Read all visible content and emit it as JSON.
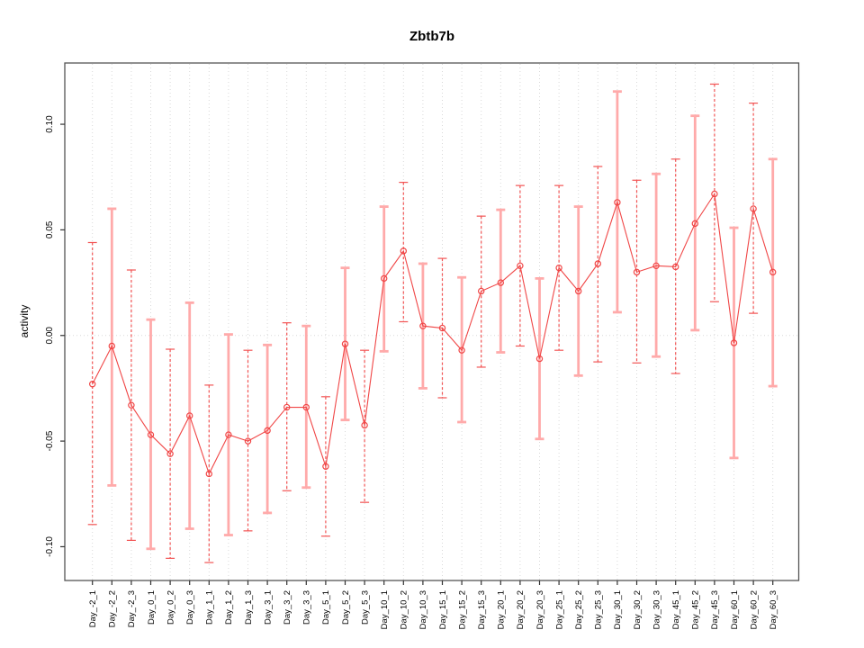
{
  "chart_data": {
    "type": "line",
    "title": "Zbtb7b",
    "xlabel": "",
    "ylabel": "activity",
    "categories": [
      "Day_-2_1",
      "Day_-2_2",
      "Day_-2_3",
      "Day_0_1",
      "Day_0_2",
      "Day_0_3",
      "Day_1_1",
      "Day_1_2",
      "Day_1_3",
      "Day_3_1",
      "Day_3_2",
      "Day_3_3",
      "Day_5_1",
      "Day_5_2",
      "Day_5_3",
      "Day_10_1",
      "Day_10_2",
      "Day_10_3",
      "Day_15_1",
      "Day_15_2",
      "Day_15_3",
      "Day_20_1",
      "Day_20_2",
      "Day_20_3",
      "Day_25_1",
      "Day_25_2",
      "Day_25_3",
      "Day_30_1",
      "Day_30_2",
      "Day_30_3",
      "Day_45_1",
      "Day_45_2",
      "Day_45_3",
      "Day_60_1",
      "Day_60_2",
      "Day_60_3"
    ],
    "series": [
      {
        "name": "mean",
        "values": [
          -0.023,
          -0.005,
          -0.033,
          -0.047,
          -0.056,
          -0.038,
          -0.0655,
          -0.047,
          -0.05,
          -0.045,
          -0.034,
          -0.034,
          -0.062,
          -0.004,
          -0.0425,
          0.027,
          0.04,
          0.0045,
          0.0035,
          -0.007,
          0.021,
          0.025,
          0.033,
          -0.011,
          0.032,
          0.021,
          0.034,
          0.063,
          0.03,
          0.033,
          0.0325,
          0.053,
          0.067,
          -0.0035,
          0.06,
          0.03
        ]
      },
      {
        "name": "upper",
        "values": [
          0.044,
          0.06,
          0.031,
          0.0075,
          -0.0065,
          0.0155,
          -0.0235,
          0.0005,
          -0.007,
          -0.0045,
          0.006,
          0.0045,
          -0.029,
          0.032,
          -0.007,
          0.061,
          0.0725,
          0.034,
          0.0365,
          0.0275,
          0.0565,
          0.0595,
          0.071,
          0.027,
          0.071,
          0.061,
          0.08,
          0.1155,
          0.0735,
          0.0765,
          0.0835,
          0.104,
          0.119,
          0.051,
          0.11,
          0.0835
        ]
      },
      {
        "name": "lower",
        "values": [
          -0.0895,
          -0.071,
          -0.097,
          -0.101,
          -0.1055,
          -0.0915,
          -0.1075,
          -0.0945,
          -0.0925,
          -0.084,
          -0.0735,
          -0.072,
          -0.095,
          -0.04,
          -0.079,
          -0.0075,
          0.0065,
          -0.025,
          -0.0295,
          -0.041,
          -0.015,
          -0.008,
          -0.005,
          -0.049,
          -0.007,
          -0.019,
          -0.0125,
          0.011,
          -0.013,
          -0.01,
          -0.018,
          0.0025,
          0.016,
          -0.058,
          0.0105,
          -0.024
        ]
      }
    ],
    "error_bar_styles": [
      "dashed",
      "solid",
      "dashed",
      "solid",
      "dashed",
      "solid",
      "dashed",
      "solid",
      "dashed",
      "solid",
      "dashed",
      "solid",
      "dashed",
      "solid",
      "dashed",
      "solid",
      "dashed",
      "solid",
      "dashed",
      "solid",
      "dashed",
      "solid",
      "dashed",
      "solid",
      "dashed",
      "solid",
      "dashed",
      "solid",
      "dashed",
      "solid",
      "dashed",
      "solid",
      "dashed",
      "solid",
      "dashed",
      "solid"
    ],
    "y_ticks": [
      -0.1,
      -0.05,
      0.0,
      0.05,
      0.1
    ],
    "y_tick_labels": [
      "-0.10",
      "-0.05",
      "0.00",
      "0.05",
      "0.10"
    ],
    "ylim": [
      -0.116,
      0.129
    ],
    "grid": "vertical-dotted",
    "zero_line": true,
    "point_marker": "open-circle",
    "legend": "none",
    "colors": {
      "series": "#f04646",
      "bar_dashed": "#f25454",
      "bar_solid": "#ffaaaa",
      "grid": "#d9d9d9",
      "zero_line": "#d9d9d9",
      "box": "#555555",
      "tick": "#333333",
      "text": "#000000"
    }
  }
}
